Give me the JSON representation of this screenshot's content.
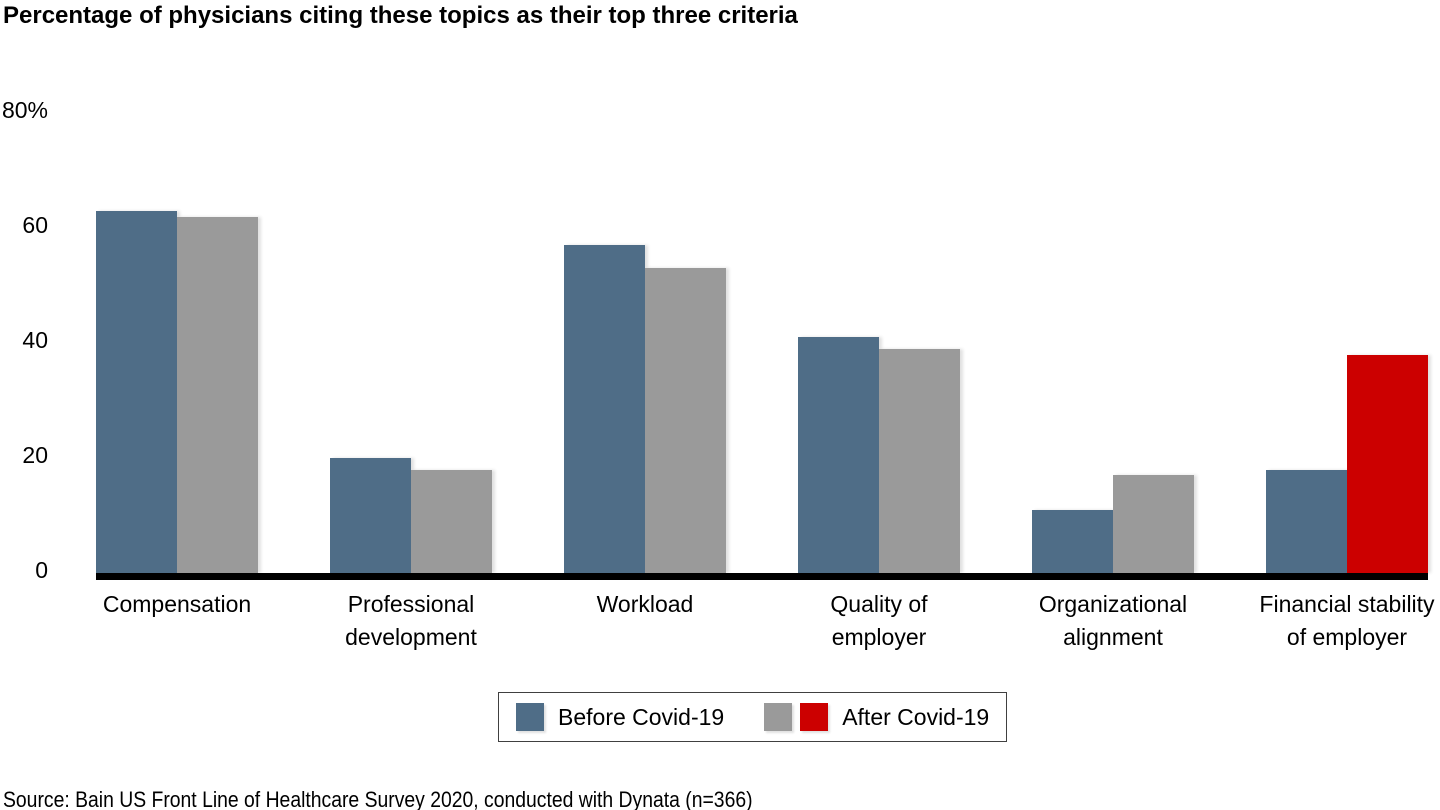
{
  "title": "Percentage of physicians citing these topics as their top three criteria",
  "source": "Source: Bain US Front Line of Healthcare Survey 2020, conducted with Dynata (n=366)",
  "colors": {
    "before": "#4f6d87",
    "after": "#9a9a9a",
    "highlight": "#cc0000",
    "axis": "#000000"
  },
  "y_axis": {
    "ticks": [
      {
        "value": 0,
        "label": "0"
      },
      {
        "value": 20,
        "label": "20"
      },
      {
        "value": 40,
        "label": "40"
      },
      {
        "value": 60,
        "label": "60"
      },
      {
        "value": 80,
        "label": "80%"
      }
    ]
  },
  "legend": {
    "items": [
      {
        "label": "Before Covid-19",
        "swatches": [
          "#4f6d87"
        ]
      },
      {
        "label": "After Covid-19",
        "swatches": [
          "#9a9a9a",
          "#cc0000"
        ]
      }
    ]
  },
  "chart_data": {
    "type": "bar",
    "title": "Percentage of physicians citing these topics as their top three criteria",
    "categories": [
      "Compensation",
      "Professional development",
      "Workload",
      "Quality of employer",
      "Organizational alignment",
      "Financial stability of employer"
    ],
    "category_lines": [
      [
        "Compensation"
      ],
      [
        "Professional",
        "development"
      ],
      [
        "Workload"
      ],
      [
        "Quality of",
        "employer"
      ],
      [
        "Organizational",
        "alignment"
      ],
      [
        "Financial stability",
        "of employer"
      ]
    ],
    "series": [
      {
        "name": "Before Covid-19",
        "color": "#4f6d87",
        "values": [
          63,
          20,
          57,
          41,
          11,
          18
        ]
      },
      {
        "name": "After Covid-19",
        "color": "#9a9a9a",
        "values": [
          62,
          18,
          53,
          39,
          17,
          38
        ],
        "value_colors": [
          null,
          null,
          null,
          null,
          null,
          "#cc0000"
        ]
      }
    ],
    "xlabel": "",
    "ylabel": "",
    "ylim": [
      0,
      80
    ],
    "grid": false,
    "legend_position": "bottom"
  }
}
